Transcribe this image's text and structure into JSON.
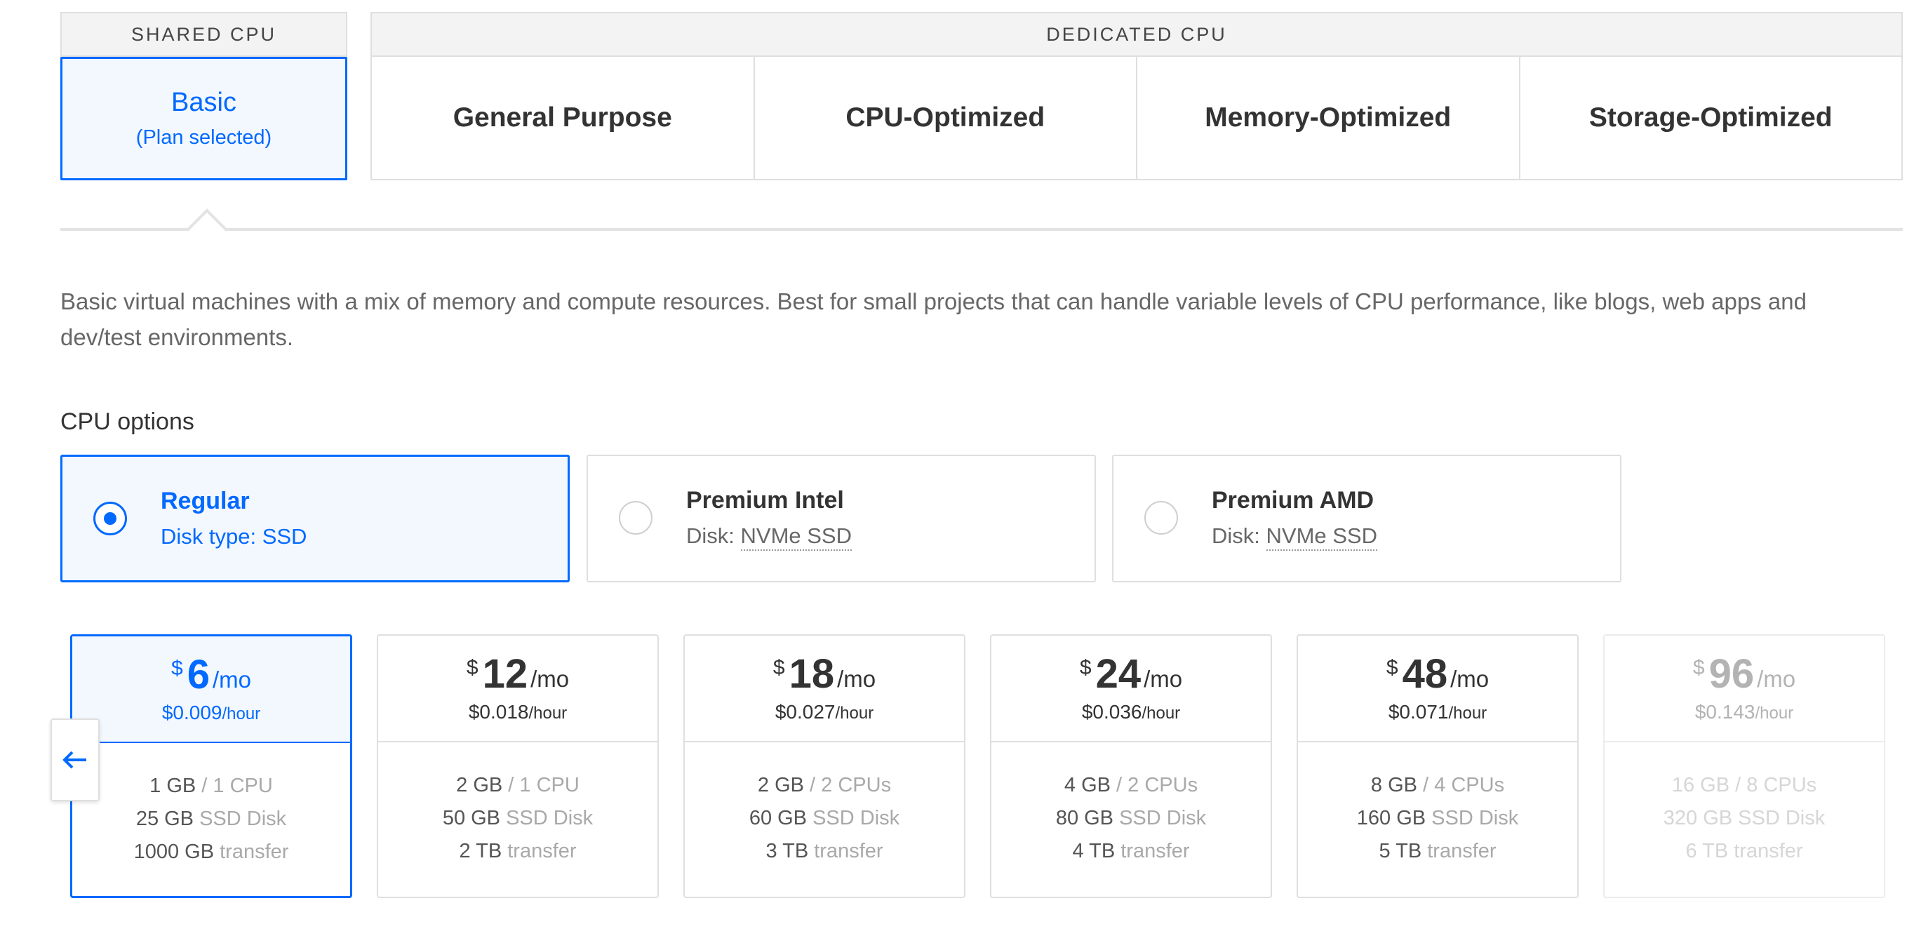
{
  "plan_types": {
    "shared_header": "SHARED CPU",
    "basic_title": "Basic",
    "basic_status": "(Plan selected)",
    "dedicated_header": "DEDICATED CPU",
    "dedicated_options": [
      "General Purpose",
      "CPU-Optimized",
      "Memory-Optimized",
      "Storage-Optimized"
    ]
  },
  "description": "Basic virtual machines with a mix of memory and compute resources. Best for small projects that can handle variable levels of CPU performance, like blogs, web apps and dev/test environments.",
  "cpu_options": {
    "title": "CPU options",
    "items": [
      {
        "name": "Regular",
        "disk_prefix": "Disk type: SSD",
        "disk_value": "",
        "selected": true
      },
      {
        "name": "Premium Intel",
        "disk_prefix": "Disk: ",
        "disk_value": "NVMe SSD",
        "selected": false
      },
      {
        "name": "Premium AMD",
        "disk_prefix": "Disk: ",
        "disk_value": "NVMe SSD",
        "selected": false
      }
    ]
  },
  "plans": [
    {
      "currency": "$",
      "amount": "6",
      "per": "/mo",
      "hourly": "$0.009",
      "hourly_unit": "/hour",
      "memory": "1 GB",
      "cpu": " / 1 CPU",
      "disk": "25 GB",
      "disk_type": " SSD Disk",
      "transfer": "1000 GB",
      "transfer_label": " transfer",
      "selected": true
    },
    {
      "currency": "$",
      "amount": "12",
      "per": "/mo",
      "hourly": "$0.018",
      "hourly_unit": "/hour",
      "memory": "2 GB",
      "cpu": " / 1 CPU",
      "disk": "50 GB",
      "disk_type": " SSD Disk",
      "transfer": "2 TB",
      "transfer_label": " transfer"
    },
    {
      "currency": "$",
      "amount": "18",
      "per": "/mo",
      "hourly": "$0.027",
      "hourly_unit": "/hour",
      "memory": "2 GB",
      "cpu": " / 2 CPUs",
      "disk": "60 GB",
      "disk_type": " SSD Disk",
      "transfer": "3 TB",
      "transfer_label": " transfer"
    },
    {
      "currency": "$",
      "amount": "24",
      "per": "/mo",
      "hourly": "$0.036",
      "hourly_unit": "/hour",
      "memory": "4 GB",
      "cpu": " / 2 CPUs",
      "disk": "80 GB",
      "disk_type": " SSD Disk",
      "transfer": "4 TB",
      "transfer_label": " transfer"
    },
    {
      "currency": "$",
      "amount": "48",
      "per": "/mo",
      "hourly": "$0.071",
      "hourly_unit": "/hour",
      "memory": "8 GB",
      "cpu": " / 4 CPUs",
      "disk": "160 GB",
      "disk_type": " SSD Disk",
      "transfer": "5 TB",
      "transfer_label": " transfer"
    },
    {
      "currency": "$",
      "amount": "96",
      "per": "/mo",
      "hourly": "$0.143",
      "hourly_unit": "/hour",
      "memory": "16 GB",
      "cpu": " / 8 CPUs",
      "disk": "320 GB",
      "disk_type": " SSD Disk",
      "transfer": "6 TB",
      "transfer_label": " transfer",
      "faded": true
    }
  ],
  "scroll_left_icon": "arrow-left-icon",
  "colors": {
    "accent": "#0069ff",
    "selected_bg": "#f3f8ff",
    "border": "#dfdfdf"
  }
}
